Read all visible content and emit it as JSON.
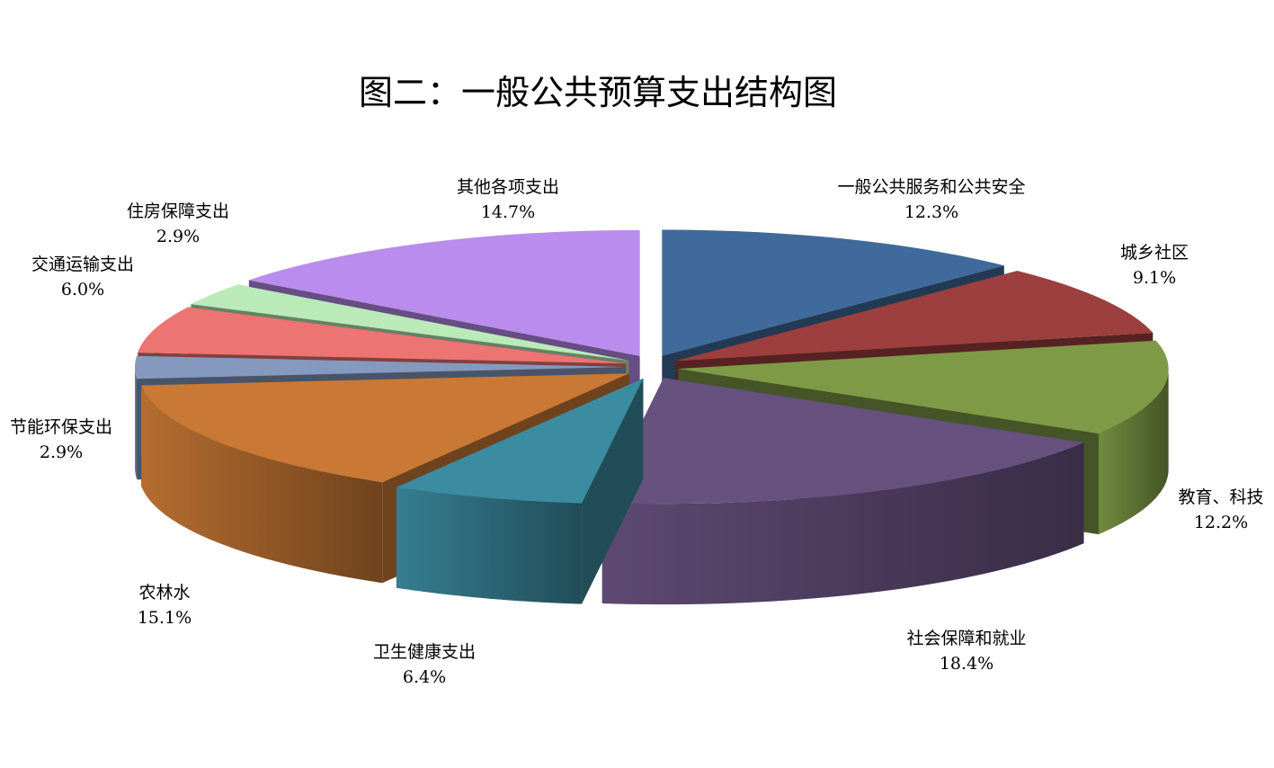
{
  "chart_data": {
    "type": "pie",
    "style": "3d-exploded",
    "title": "图二：一般公共预算支出结构图",
    "start": "top",
    "direction": "clockwise",
    "slices": [
      {
        "label": "一般公共服务和公共安全",
        "value": 12.3,
        "display": "12.3%",
        "color": "#3F6A9B"
      },
      {
        "label": "城乡社区",
        "value": 9.1,
        "display": "9.1%",
        "color": "#9C3F3E"
      },
      {
        "label": "教育、科技",
        "value": 12.2,
        "display": "12.2%",
        "color": "#7E9A46"
      },
      {
        "label": "社会保障和就业",
        "value": 18.4,
        "display": "18.4%",
        "color": "#67517F"
      },
      {
        "label": "卫生健康支出",
        "value": 6.4,
        "display": "6.4%",
        "color": "#3C8CA1"
      },
      {
        "label": "农林水",
        "value": 15.1,
        "display": "15.1%",
        "color": "#C97935"
      },
      {
        "label": "节能环保支出",
        "value": 2.9,
        "display": "2.9%",
        "color": "#8599BE"
      },
      {
        "label": "交通运输支出",
        "value": 6.0,
        "display": "6.0%",
        "color": "#EC7472"
      },
      {
        "label": "住房保障支出",
        "value": 2.9,
        "display": "2.9%",
        "color": "#B9EAB8"
      },
      {
        "label": "其他各项支出",
        "value": 14.7,
        "display": "14.7%",
        "color": "#B98CED"
      }
    ]
  }
}
